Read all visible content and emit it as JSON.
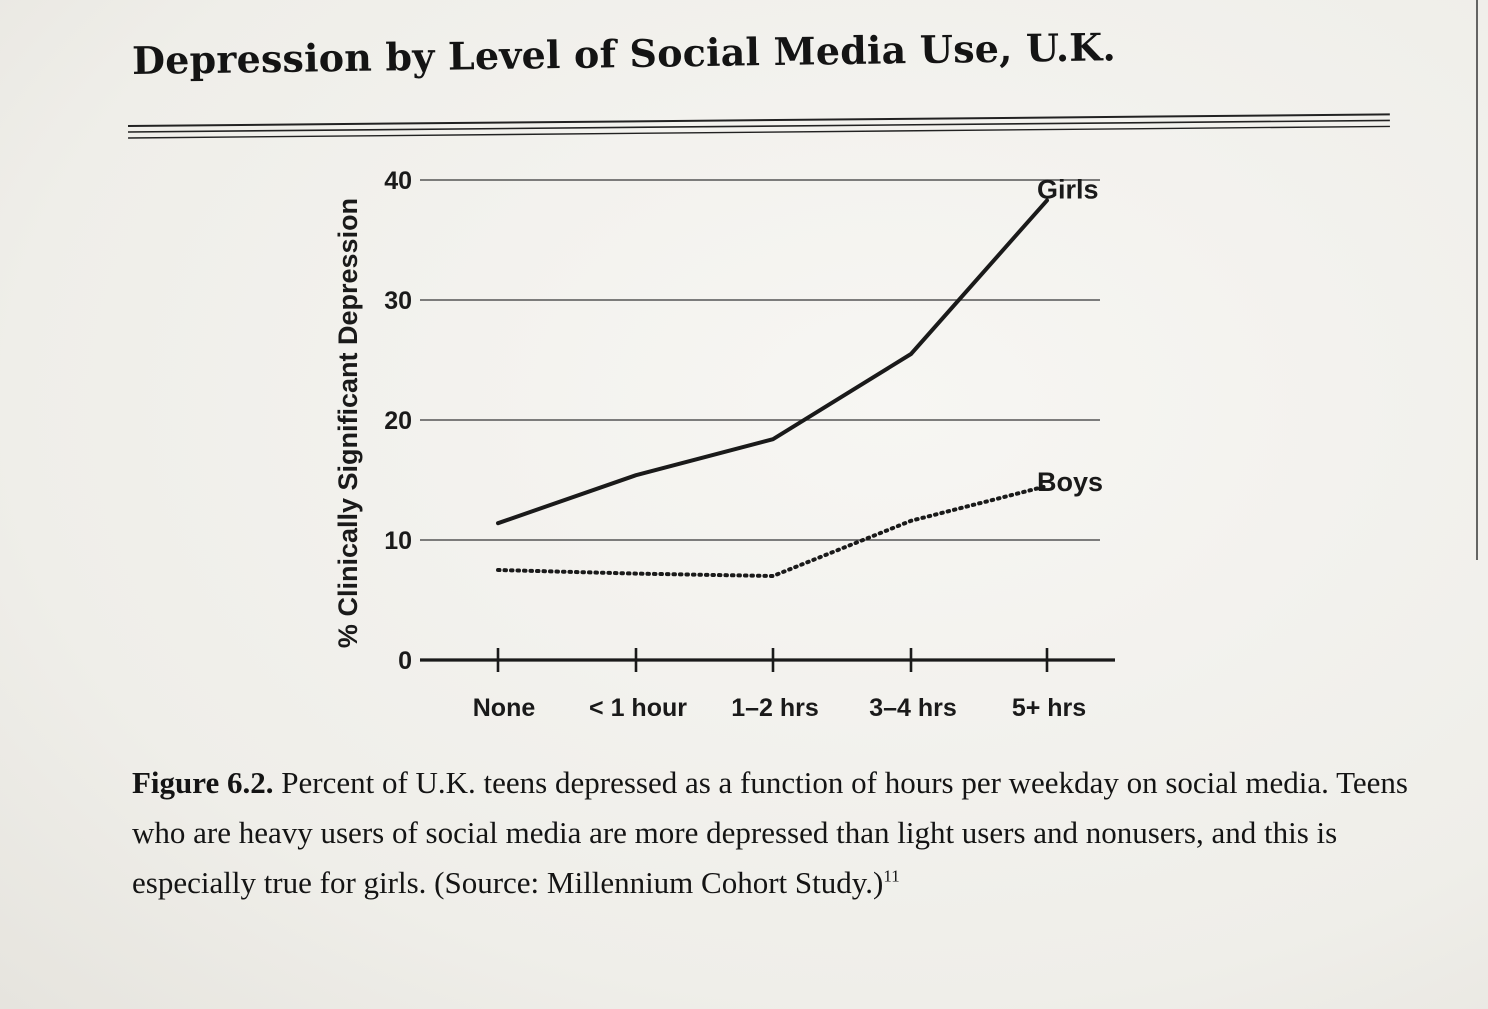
{
  "title": "Depression by Level of Social Media Use, U.K.",
  "colors": {
    "ink": "#1a1a1a",
    "grid": "#555555",
    "paper": "#f2f1ee"
  },
  "caption": {
    "label": "Figure 6.2.",
    "text": "Percent of U.K. teens depressed as a function of hours per weekday on social media. Teens who are heavy users of social media are more depressed than light users and nonusers, and this is especially true for girls. (Source: Millennium Cohort Study.)",
    "footnote": "11"
  },
  "chart_data": {
    "type": "line",
    "title": "Depression by Level of Social Media Use, U.K.",
    "xlabel": "",
    "ylabel": "% Clinically Significant Depression",
    "categories": [
      "None",
      "< 1 hour",
      "1–2 hrs",
      "3–4 hrs",
      "5+ hrs"
    ],
    "ylim": [
      0,
      40
    ],
    "yticks": [
      "0",
      "10",
      "20",
      "30",
      "40"
    ],
    "grid": true,
    "legend": "inline labels at line ends",
    "series": [
      {
        "name": "Girls",
        "style": "solid",
        "values": [
          11.4,
          15.4,
          18.4,
          25.5,
          38.3
        ]
      },
      {
        "name": "Boys",
        "style": "dotted",
        "values": [
          7.5,
          7.2,
          7.0,
          11.6,
          14.5
        ]
      }
    ]
  }
}
